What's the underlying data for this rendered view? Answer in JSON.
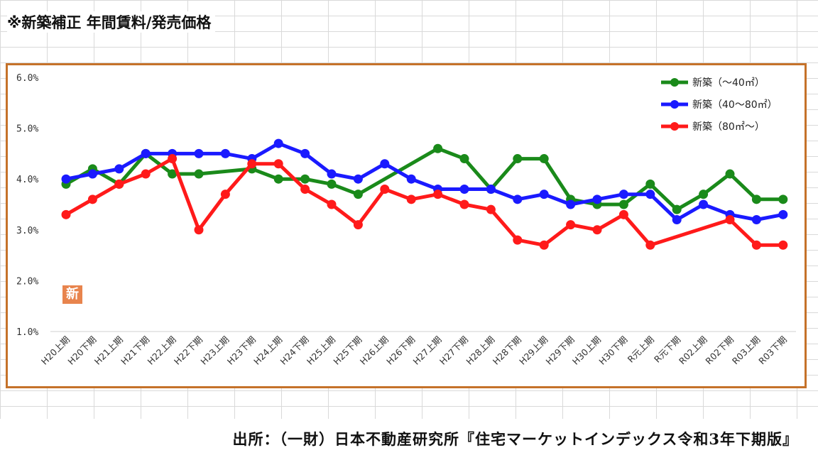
{
  "page": {
    "title": "※新築補正 年間賃料/発売価格",
    "source": "出所：（一財）日本不動産研究所『住宅マーケットインデックス令和3年下期版』",
    "badge_text": "新"
  },
  "chart_data": {
    "type": "line",
    "categories": [
      "H20上期",
      "H20下期",
      "H21上期",
      "H21下期",
      "H22上期",
      "H22下期",
      "H23上期",
      "H23下期",
      "H24上期",
      "H24下期",
      "H25上期",
      "H25下期",
      "H26上期",
      "H26下期",
      "H27上期",
      "H27下期",
      "H28上期",
      "H28下期",
      "H29上期",
      "H29下期",
      "H30上期",
      "H30下期",
      "R元上期",
      "R元下期",
      "R02上期",
      "R02下期",
      "R03上期",
      "R03下期"
    ],
    "yticks": [
      "6.0%",
      "5.0%",
      "4.0%",
      "3.0%",
      "2.0%",
      "1.0%"
    ],
    "ylim": [
      1.0,
      6.0
    ],
    "grid": false,
    "legend_position": "top-right",
    "series": [
      {
        "name": "新築（～40㎡）",
        "color": "#1a8a1a",
        "values": [
          3.9,
          4.2,
          3.9,
          4.5,
          4.1,
          4.1,
          null,
          4.2,
          4.0,
          4.0,
          3.9,
          3.7,
          null,
          null,
          4.6,
          4.4,
          3.8,
          4.4,
          4.4,
          3.6,
          3.5,
          3.5,
          3.9,
          3.4,
          3.7,
          4.1,
          3.6,
          3.6
        ]
      },
      {
        "name": "新築（40～80㎡）",
        "color": "#1a1aff",
        "values": [
          4.0,
          4.1,
          4.2,
          4.5,
          4.5,
          4.5,
          4.5,
          4.4,
          4.7,
          4.5,
          4.1,
          4.0,
          4.3,
          4.0,
          3.8,
          3.8,
          3.8,
          3.6,
          3.7,
          3.5,
          3.6,
          3.7,
          3.7,
          3.2,
          3.5,
          3.3,
          3.2,
          3.3
        ]
      },
      {
        "name": "新築（80㎡～）",
        "color": "#ff1a1a",
        "values": [
          3.3,
          3.6,
          3.9,
          4.1,
          4.4,
          3.0,
          3.7,
          4.3,
          4.3,
          3.8,
          3.5,
          3.1,
          3.8,
          3.6,
          3.7,
          3.5,
          3.4,
          2.8,
          2.7,
          3.1,
          3.0,
          3.3,
          2.7,
          null,
          null,
          3.2,
          2.7,
          2.7
        ]
      }
    ]
  }
}
